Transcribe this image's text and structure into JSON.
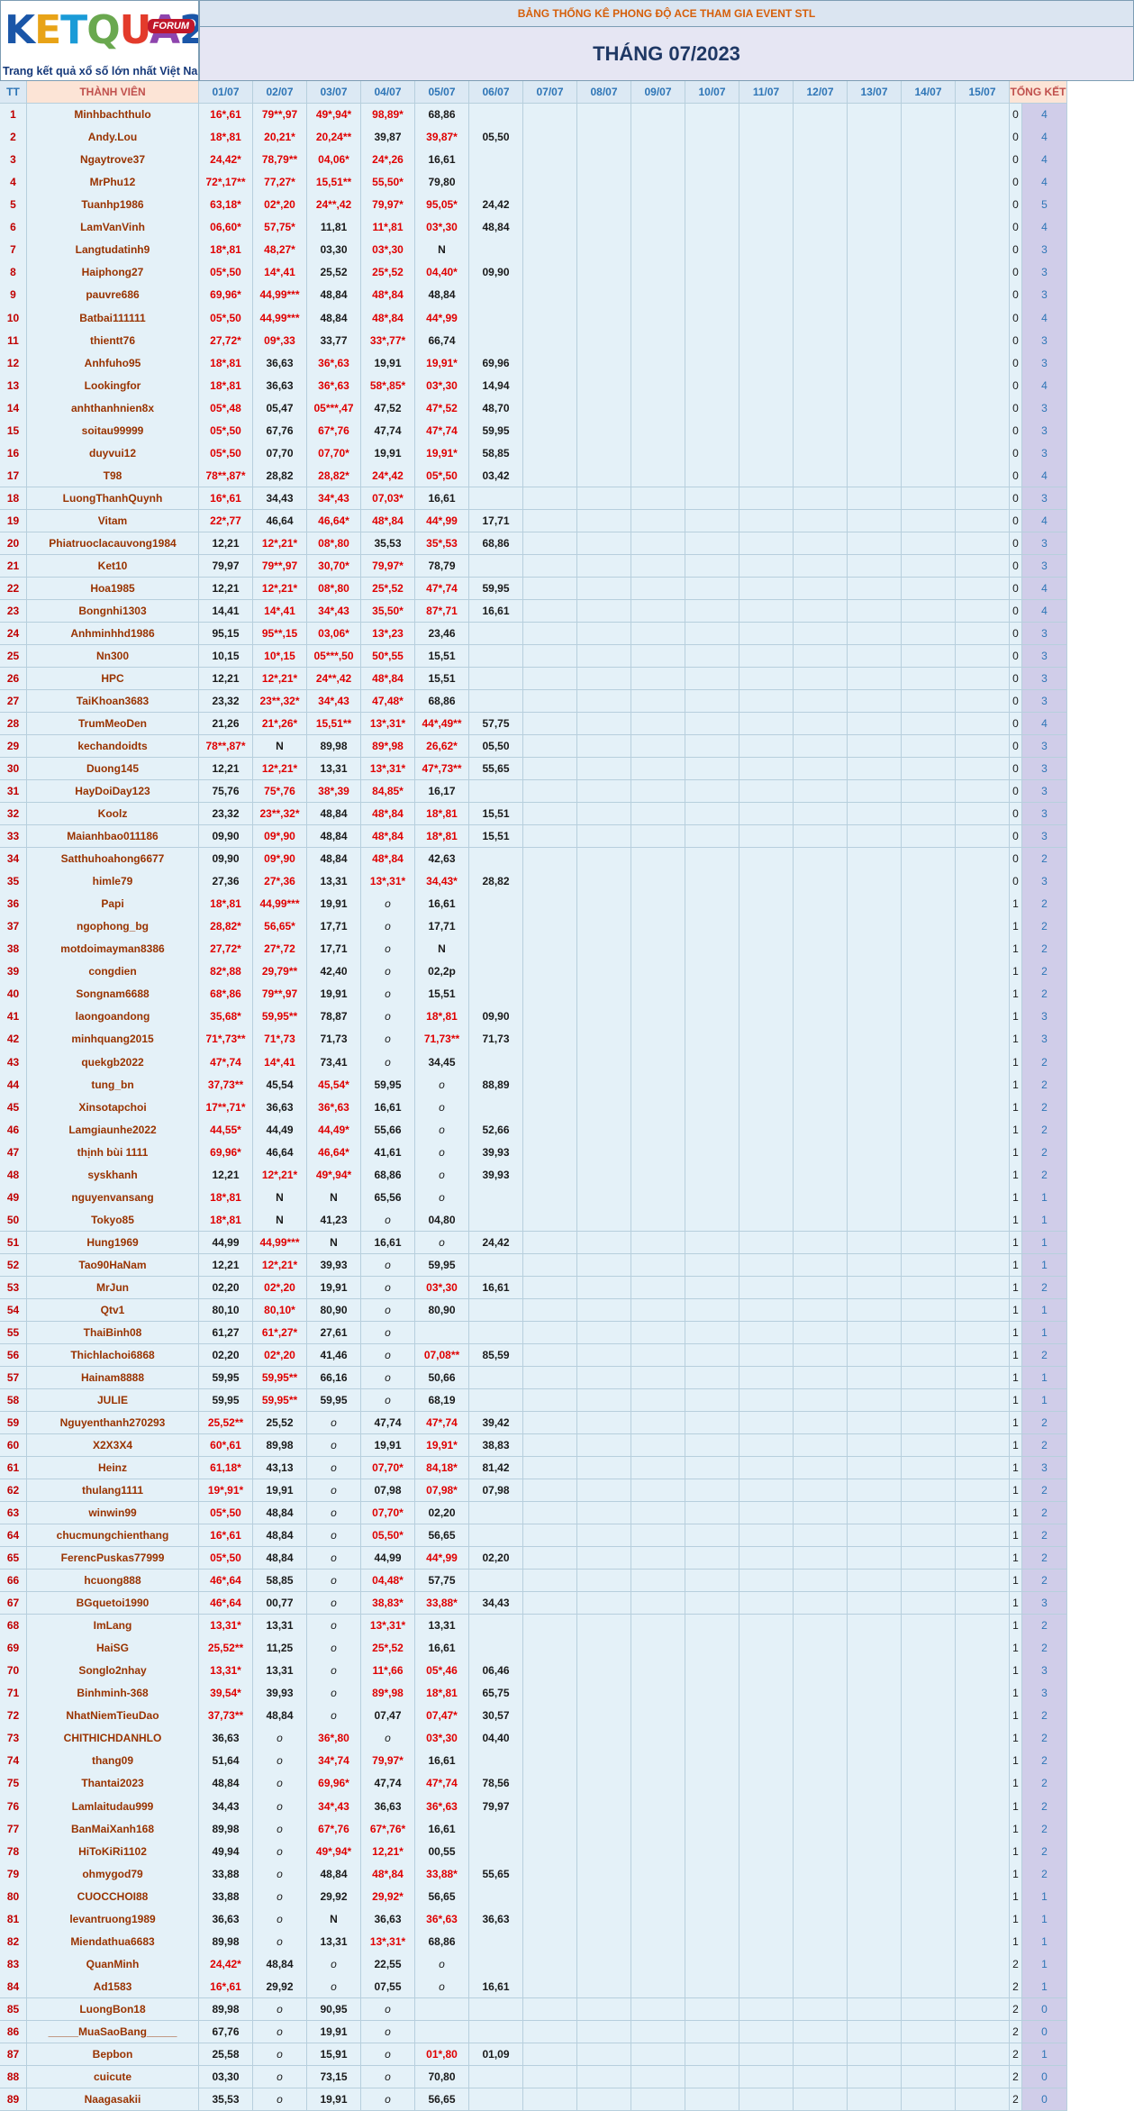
{
  "logo": {
    "text": "KETQUA2",
    "forum": "FORUM",
    "tagline": "Trang kết quả xổ số lớn nhất Việt Nam"
  },
  "banner": "BẢNG THỐNG KÊ PHONG ĐỘ ACE THAM GIA EVENT STL",
  "month": "THÁNG 07/2023",
  "headers": {
    "tt": "TT",
    "name": "THÀNH VIÊN",
    "total": "TỔNG KẾT"
  },
  "dates": [
    "01/07",
    "02/07",
    "03/07",
    "04/07",
    "05/07",
    "06/07",
    "07/07",
    "08/07",
    "09/07",
    "10/07",
    "11/07",
    "12/07",
    "13/07",
    "14/07",
    "15/07"
  ],
  "colors": {
    "red": "#e00000",
    "blue": "#2e75b6",
    "name": "#993300",
    "header_bg": "#dce9f4",
    "total_bg": "#d0cde9"
  },
  "rows": [
    [
      "1",
      "Minhbachthulo",
      "16*,61",
      "79**,97",
      "49*,94*",
      "98,89*",
      "68,86",
      "",
      "0",
      "4"
    ],
    [
      "2",
      "Andy.Lou",
      "18*,81",
      "20,21*",
      "20,24**",
      "39,87",
      "39,87*",
      "05,50",
      "0",
      "4"
    ],
    [
      "3",
      "Ngaytrove37",
      "24,42*",
      "78,79**",
      "04,06*",
      "24*,26",
      "16,61",
      "",
      "0",
      "4"
    ],
    [
      "4",
      "MrPhu12",
      "72*,17**",
      "77,27*",
      "15,51**",
      "55,50*",
      "79,80",
      "",
      "0",
      "4"
    ],
    [
      "5",
      "Tuanhp1986",
      "63,18*",
      "02*,20",
      "24**,42",
      "79,97*",
      "95,05*",
      "24,42",
      "0",
      "5"
    ],
    [
      "6",
      "LamVanVinh",
      "06,60*",
      "57,75*",
      "11,81",
      "11*,81",
      "03*,30",
      "48,84",
      "0",
      "4"
    ],
    [
      "7",
      "Langtudatinh9",
      "18*,81",
      "48,27*",
      "03,30",
      "03*,30",
      "N",
      "",
      "0",
      "3"
    ],
    [
      "8",
      "Haiphong27",
      "05*,50",
      "14*,41",
      "25,52",
      "25*,52",
      "04,40*",
      "09,90",
      "0",
      "3"
    ],
    [
      "9",
      "pauvre686",
      "69,96*",
      "44,99***",
      "48,84",
      "48*,84",
      "48,84",
      "",
      "0",
      "3"
    ],
    [
      "10",
      "Batbai111111",
      "05*,50",
      "44,99***",
      "48,84",
      "48*,84",
      "44*,99",
      "",
      "0",
      "4"
    ],
    [
      "11",
      "thientt76",
      "27,72*",
      "09*,33",
      "33,77",
      "33*,77*",
      "66,74",
      "",
      "0",
      "3"
    ],
    [
      "12",
      "Anhfuho95",
      "18*,81",
      "36,63",
      "36*,63",
      "19,91",
      "19,91*",
      "69,96",
      "0",
      "3"
    ],
    [
      "13",
      "Lookingfor",
      "18*,81",
      "36,63",
      "36*,63",
      "58*,85*",
      "03*,30",
      "14,94",
      "0",
      "4"
    ],
    [
      "14",
      "anhthanhnien8x",
      "05*,48",
      "05,47",
      "05***,47",
      "47,52",
      "47*,52",
      "48,70",
      "0",
      "3"
    ],
    [
      "15",
      "soitau99999",
      "05*,50",
      "67,76",
      "67*,76",
      "47,74",
      "47*,74",
      "59,95",
      "0",
      "3"
    ],
    [
      "16",
      "duyvui12",
      "05*,50",
      "07,70",
      "07,70*",
      "19,91",
      "19,91*",
      "58,85",
      "0",
      "3"
    ],
    [
      "17",
      "T98",
      "78**,87*",
      "28,82",
      "28,82*",
      "24*,42",
      "05*,50",
      "03,42",
      "0",
      "4"
    ],
    [
      "18",
      "LuongThanhQuynh",
      "16*,61",
      "34,43",
      "34*,43",
      "07,03*",
      "16,61",
      "",
      "0",
      "3"
    ],
    [
      "19",
      "Vitam",
      "22*,77",
      "46,64",
      "46,64*",
      "48*,84",
      "44*,99",
      "17,71",
      "0",
      "4"
    ],
    [
      "20",
      "Phiatruoclacauvong1984",
      "12,21",
      "12*,21*",
      "08*,80",
      "35,53",
      "35*,53",
      "68,86",
      "0",
      "3"
    ],
    [
      "21",
      "Ket10",
      "79,97",
      "79**,97",
      "30,70*",
      "79,97*",
      "78,79",
      "",
      "0",
      "3"
    ],
    [
      "22",
      "Hoa1985",
      "12,21",
      "12*,21*",
      "08*,80",
      "25*,52",
      "47*,74",
      "59,95",
      "0",
      "4"
    ],
    [
      "23",
      "Bongnhi1303",
      "14,41",
      "14*,41",
      "34*,43",
      "35,50*",
      "87*,71",
      "16,61",
      "0",
      "4"
    ],
    [
      "24",
      "Anhminhhd1986",
      "95,15",
      "95**,15",
      "03,06*",
      "13*,23",
      "23,46",
      "",
      "0",
      "3"
    ],
    [
      "25",
      "Nn300",
      "10,15",
      "10*,15",
      "05***,50",
      "50*,55",
      "15,51",
      "",
      "0",
      "3"
    ],
    [
      "26",
      "HPC",
      "12,21",
      "12*,21*",
      "24**,42",
      "48*,84",
      "15,51",
      "",
      "0",
      "3"
    ],
    [
      "27",
      "TaiKhoan3683",
      "23,32",
      "23**,32*",
      "34*,43",
      "47,48*",
      "68,86",
      "",
      "0",
      "3"
    ],
    [
      "28",
      "TrumMeoDen",
      "21,26",
      "21*,26*",
      "15,51**",
      "13*,31*",
      "44*,49**",
      "57,75",
      "0",
      "4"
    ],
    [
      "29",
      "kechandoidts",
      "78**,87*",
      "N",
      "89,98",
      "89*,98",
      "26,62*",
      "05,50",
      "0",
      "3"
    ],
    [
      "30",
      "Duong145",
      "12,21",
      "12*,21*",
      "13,31",
      "13*,31*",
      "47*,73**",
      "55,65",
      "0",
      "3"
    ],
    [
      "31",
      "HayDoiDay123",
      "75,76",
      "75*,76",
      "38*,39",
      "84,85*",
      "16,17",
      "",
      "0",
      "3"
    ],
    [
      "32",
      "Koolz",
      "23,32",
      "23**,32*",
      "48,84",
      "48*,84",
      "18*,81",
      "15,51",
      "0",
      "3"
    ],
    [
      "33",
      "Maianhbao011186",
      "09,90",
      "09*,90",
      "48,84",
      "48*,84",
      "18*,81",
      "15,51",
      "0",
      "3"
    ],
    [
      "34",
      "Satthuhoahong6677",
      "09,90",
      "09*,90",
      "48,84",
      "48*,84",
      "42,63",
      "",
      "0",
      "2"
    ],
    [
      "35",
      "himle79",
      "27,36",
      "27*,36",
      "13,31",
      "13*,31*",
      "34,43*",
      "28,82",
      "0",
      "3"
    ],
    [
      "36",
      "Papi",
      "18*,81",
      "44,99***",
      "19,91",
      "o",
      "16,61",
      "",
      "1",
      "2"
    ],
    [
      "37",
      "ngophong_bg",
      "28,82*",
      "56,65*",
      "17,71",
      "o",
      "17,71",
      "",
      "1",
      "2"
    ],
    [
      "38",
      "motdoimayman8386",
      "27,72*",
      "27*,72",
      "17,71",
      "o",
      "N",
      "",
      "1",
      "2"
    ],
    [
      "39",
      "congdien",
      "82*,88",
      "29,79**",
      "42,40",
      "o",
      "02,2p",
      "",
      "1",
      "2"
    ],
    [
      "40",
      "Songnam6688",
      "68*,86",
      "79**,97",
      "19,91",
      "o",
      "15,51",
      "",
      "1",
      "2"
    ],
    [
      "41",
      "laongoandong",
      "35,68*",
      "59,95**",
      "78,87",
      "o",
      "18*,81",
      "09,90",
      "1",
      "3"
    ],
    [
      "42",
      "minhquang2015",
      "71*,73**",
      "71*,73",
      "71,73",
      "o",
      "71,73**",
      "71,73",
      "1",
      "3"
    ],
    [
      "43",
      "quekgb2022",
      "47*,74",
      "14*,41",
      "73,41",
      "o",
      "34,45",
      "",
      "1",
      "2"
    ],
    [
      "44",
      "tung_bn",
      "37,73**",
      "45,54",
      "45,54*",
      "59,95",
      "o",
      "88,89",
      "1",
      "2"
    ],
    [
      "45",
      "Xinsotapchoi",
      "17**,71*",
      "36,63",
      "36*,63",
      "16,61",
      "o",
      "",
      "1",
      "2"
    ],
    [
      "46",
      "Lamgiaunhe2022",
      "44,55*",
      "44,49",
      "44,49*",
      "55,66",
      "o",
      "52,66",
      "1",
      "2"
    ],
    [
      "47",
      "thịnh bùi 1111",
      "69,96*",
      "46,64",
      "46,64*",
      "41,61",
      "o",
      "39,93",
      "1",
      "2"
    ],
    [
      "48",
      "syskhanh",
      "12,21",
      "12*,21*",
      "49*,94*",
      "68,86",
      "o",
      "39,93",
      "1",
      "2"
    ],
    [
      "49",
      "nguyenvansang",
      "18*,81",
      "N",
      "N",
      "65,56",
      "o",
      "",
      "1",
      "1"
    ],
    [
      "50",
      "Tokyo85",
      "18*,81",
      "N",
      "41,23",
      "o",
      "04,80",
      "",
      "1",
      "1"
    ],
    [
      "51",
      "Hung1969",
      "44,99",
      "44,99***",
      "N",
      "16,61",
      "o",
      "24,42",
      "1",
      "1"
    ],
    [
      "52",
      "Tao90HaNam",
      "12,21",
      "12*,21*",
      "39,93",
      "o",
      "59,95",
      "",
      "1",
      "1"
    ],
    [
      "53",
      "MrJun",
      "02,20",
      "02*,20",
      "19,91",
      "o",
      "03*,30",
      "16,61",
      "1",
      "2"
    ],
    [
      "54",
      "Qtv1",
      "80,10",
      "80,10*",
      "80,90",
      "o",
      "80,90",
      "",
      "1",
      "1"
    ],
    [
      "55",
      "ThaiBinh08",
      "61,27",
      "61*,27*",
      "27,61",
      "o",
      "",
      "",
      "1",
      "1"
    ],
    [
      "56",
      "Thichlachoi6868",
      "02,20",
      "02*,20",
      "41,46",
      "o",
      "07,08**",
      "85,59",
      "1",
      "2"
    ],
    [
      "57",
      "Hainam8888",
      "59,95",
      "59,95**",
      "66,16",
      "o",
      "50,66",
      "",
      "1",
      "1"
    ],
    [
      "58",
      "JULIE",
      "59,95",
      "59,95**",
      "59,95",
      "o",
      "68,19",
      "",
      "1",
      "1"
    ],
    [
      "59",
      "Nguyenthanh270293",
      "25,52**",
      "25,52",
      "o",
      "47,74",
      "47*,74",
      "39,42",
      "1",
      "2"
    ],
    [
      "60",
      "X2X3X4",
      "60*,61",
      "89,98",
      "o",
      "19,91",
      "19,91*",
      "38,83",
      "1",
      "2"
    ],
    [
      "61",
      "Heinz",
      "61,18*",
      "43,13",
      "o",
      "07,70*",
      "84,18*",
      "81,42",
      "1",
      "3"
    ],
    [
      "62",
      "thulang1111",
      "19*,91*",
      "19,91",
      "o",
      "07,98",
      "07,98*",
      "07,98",
      "1",
      "2"
    ],
    [
      "63",
      "winwin99",
      "05*,50",
      "48,84",
      "o",
      "07,70*",
      "02,20",
      "",
      "1",
      "2"
    ],
    [
      "64",
      "chucmungchienthang",
      "16*,61",
      "48,84",
      "o",
      "05,50*",
      "56,65",
      "",
      "1",
      "2"
    ],
    [
      "65",
      "FerencPuskas77999",
      "05*,50",
      "48,84",
      "o",
      "44,99",
      "44*,99",
      "02,20",
      "1",
      "2"
    ],
    [
      "66",
      "hcuong888",
      "46*,64",
      "58,85",
      "o",
      "04,48*",
      "57,75",
      "",
      "1",
      "2"
    ],
    [
      "67",
      "BGquetoi1990",
      "46*,64",
      "00,77",
      "o",
      "38,83*",
      "33,88*",
      "34,43",
      "1",
      "3"
    ],
    [
      "68",
      "ImLang",
      "13,31*",
      "13,31",
      "o",
      "13*,31*",
      "13,31",
      "",
      "1",
      "2"
    ],
    [
      "69",
      "HaiSG",
      "25,52**",
      "11,25",
      "o",
      "25*,52",
      "16,61",
      "",
      "1",
      "2"
    ],
    [
      "70",
      "Songlo2nhay",
      "13,31*",
      "13,31",
      "o",
      "11*,66",
      "05*,46",
      "06,46",
      "1",
      "3"
    ],
    [
      "71",
      "Binhminh-368",
      "39,54*",
      "39,93",
      "o",
      "89*,98",
      "18*,81",
      "65,75",
      "1",
      "3"
    ],
    [
      "72",
      "NhatNiemTieuDao",
      "37,73**",
      "48,84",
      "o",
      "07,47",
      "07,47*",
      "30,57",
      "1",
      "2"
    ],
    [
      "73",
      "CHITHICHDANHLO",
      "36,63",
      "o",
      "36*,80",
      "o",
      "03*,30",
      "04,40",
      "1",
      "2"
    ],
    [
      "74",
      "thang09",
      "51,64",
      "o",
      "34*,74",
      "79,97*",
      "16,61",
      "",
      "1",
      "2"
    ],
    [
      "75",
      "Thantai2023",
      "48,84",
      "o",
      "69,96*",
      "47,74",
      "47*,74",
      "78,56",
      "1",
      "2"
    ],
    [
      "76",
      "Lamlaitudau999",
      "34,43",
      "o",
      "34*,43",
      "36,63",
      "36*,63",
      "79,97",
      "1",
      "2"
    ],
    [
      "77",
      "BanMaiXanh168",
      "89,98",
      "o",
      "67*,76",
      "67*,76*",
      "16,61",
      "",
      "1",
      "2"
    ],
    [
      "78",
      "HiToKiRi1102",
      "49,94",
      "o",
      "49*,94*",
      "12,21*",
      "00,55",
      "",
      "1",
      "2"
    ],
    [
      "79",
      "ohmygod79",
      "33,88",
      "o",
      "48,84",
      "48*,84",
      "33,88*",
      "55,65",
      "1",
      "2"
    ],
    [
      "80",
      "CUOCCHOI88",
      "33,88",
      "o",
      "29,92",
      "29,92*",
      "56,65",
      "",
      "1",
      "1"
    ],
    [
      "81",
      "levantruong1989",
      "36,63",
      "o",
      "N",
      "36,63",
      "36*,63",
      "36,63",
      "1",
      "1"
    ],
    [
      "82",
      "Miendathua6683",
      "89,98",
      "o",
      "13,31",
      "13*,31*",
      "68,86",
      "",
      "1",
      "1"
    ],
    [
      "83",
      "QuanMinh",
      "24,42*",
      "48,84",
      "o",
      "22,55",
      "o",
      "",
      "2",
      "1"
    ],
    [
      "84",
      "Ad1583",
      "16*,61",
      "29,92",
      "o",
      "07,55",
      "o",
      "16,61",
      "2",
      "1"
    ],
    [
      "85",
      "LuongBon18",
      "89,98",
      "o",
      "90,95",
      "o",
      "",
      "",
      "2",
      "0"
    ],
    [
      "86",
      "_____MuaSaoBang_____",
      "67,76",
      "o",
      "19,91",
      "o",
      "",
      "",
      "2",
      "0"
    ],
    [
      "87",
      "Bepbon",
      "25,58",
      "o",
      "15,91",
      "o",
      "01*,80",
      "01,09",
      "2",
      "1"
    ],
    [
      "88",
      "cuicute",
      "03,30",
      "o",
      "73,15",
      "o",
      "70,80",
      "",
      "2",
      "0"
    ],
    [
      "89",
      "Naagasakii",
      "35,53",
      "o",
      "19,91",
      "o",
      "56,65",
      "",
      "2",
      "0"
    ]
  ]
}
